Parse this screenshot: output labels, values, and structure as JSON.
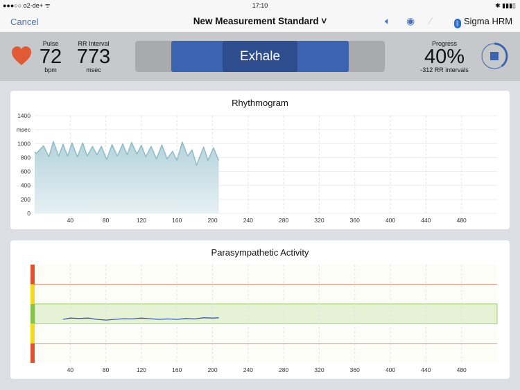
{
  "status": {
    "carrier": "●●●○○ o2-de+ ᯤ",
    "time": "17:10",
    "battery": "✱ ▮▮▮▯"
  },
  "nav": {
    "cancel": "Cancel",
    "title": "New Measurement Standard ˅",
    "device": "Sigma HRM",
    "icons": [
      "speaker-icon",
      "eye-icon",
      "wand-icon",
      "bluetooth-icon"
    ]
  },
  "metrics": {
    "pulse_label": "Pulse",
    "pulse_value": "72",
    "pulse_unit": "bpm",
    "rr_label": "RR Interval",
    "rr_value": "773",
    "rr_unit": "msec",
    "breath_phase": "Exhale",
    "progress_label": "Progress",
    "progress_value": "40%",
    "progress_sub": "-312 RR intervals",
    "progress_fraction": 0.4
  },
  "colors": {
    "heart": "#e05a33",
    "accent": "#3b63b0",
    "area": "#a9cdd6",
    "line": "#3c5aa6",
    "red": "#e2502e",
    "yellow": "#f4d81a",
    "green": "#86c34a"
  },
  "chart_data": [
    {
      "type": "area",
      "title": "Rhythmogram",
      "ylabel": "msec",
      "xlim": [
        0,
        520
      ],
      "ylim": [
        0,
        1400
      ],
      "yticks": [
        "0",
        "200",
        "400",
        "600",
        "800",
        "1000",
        "msec",
        "1400"
      ],
      "xticks": [
        "40",
        "80",
        "120",
        "160",
        "200",
        "240",
        "280",
        "320",
        "360",
        "400",
        "440",
        "480"
      ],
      "x": [
        0,
        2,
        10,
        16,
        21,
        27,
        32,
        37,
        42,
        48,
        54,
        59,
        65,
        70,
        75,
        81,
        87,
        93,
        99,
        104,
        109,
        115,
        120,
        125,
        131,
        137,
        143,
        149,
        155,
        160,
        166,
        172,
        177,
        182,
        190,
        195,
        201,
        207
      ],
      "y": [
        880,
        860,
        970,
        810,
        1030,
        820,
        990,
        820,
        1010,
        810,
        1010,
        820,
        960,
        840,
        960,
        770,
        985,
        820,
        995,
        840,
        1015,
        850,
        975,
        810,
        960,
        780,
        980,
        780,
        890,
        760,
        1020,
        820,
        910,
        690,
        950,
        760,
        940,
        760
      ]
    },
    {
      "type": "line",
      "title": "Parasympathetic Activity",
      "xlim": [
        0,
        520
      ],
      "ylim": [
        0,
        5
      ],
      "zones": {
        "red_lines": [
          1,
          4
        ],
        "green_band": [
          2,
          3
        ]
      },
      "xticks": [
        "40",
        "80",
        "120",
        "160",
        "200",
        "240",
        "280",
        "320",
        "360",
        "400",
        "440",
        "480"
      ],
      "x": [
        32,
        40,
        50,
        60,
        70,
        80,
        90,
        100,
        110,
        120,
        130,
        140,
        150,
        160,
        170,
        180,
        190,
        200,
        207
      ],
      "y": [
        2.22,
        2.28,
        2.26,
        2.28,
        2.22,
        2.18,
        2.22,
        2.25,
        2.24,
        2.28,
        2.25,
        2.22,
        2.24,
        2.22,
        2.26,
        2.24,
        2.3,
        2.28,
        2.3
      ]
    }
  ]
}
